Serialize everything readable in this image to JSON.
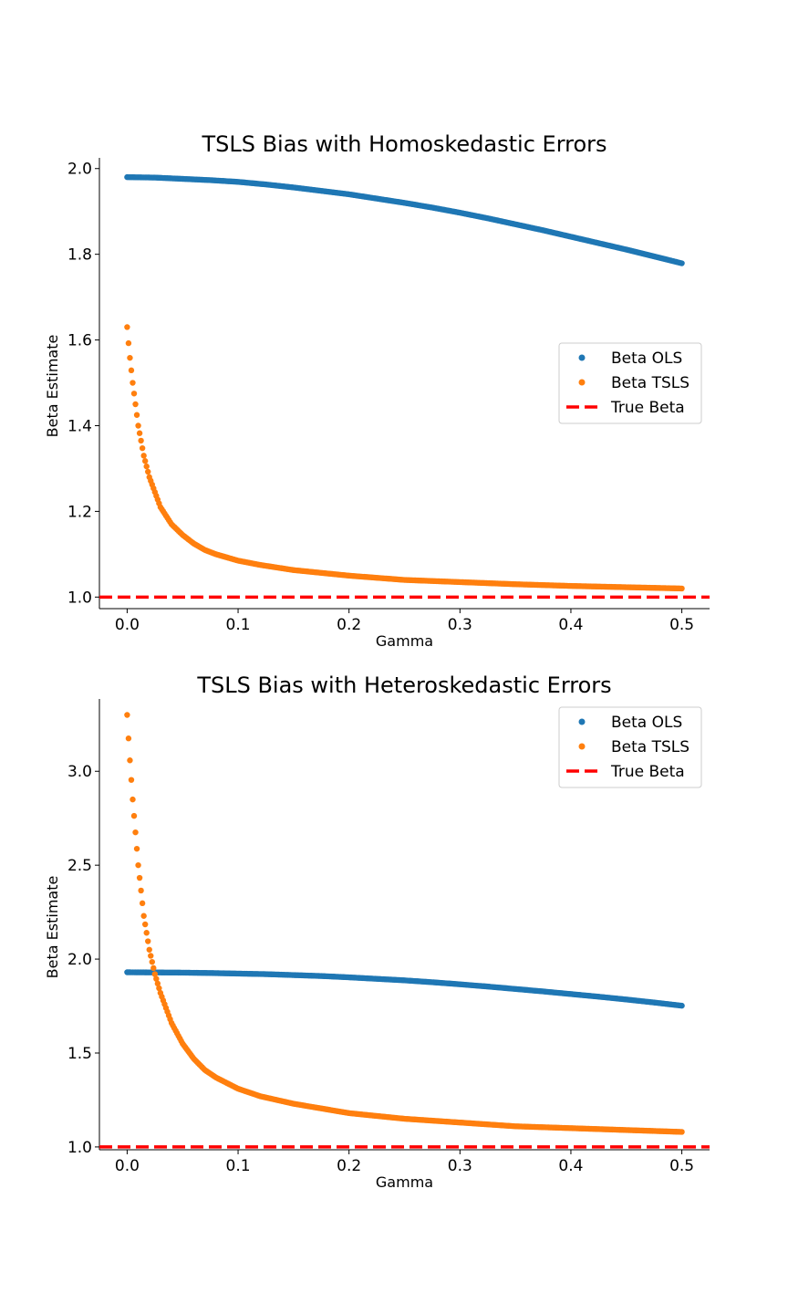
{
  "chart_data": [
    {
      "type": "scatter",
      "title": "TSLS Bias with Homoskedastic Errors",
      "xlabel": "Gamma",
      "ylabel": "Beta Estimate",
      "xlim": [
        -0.025,
        0.525
      ],
      "ylim": [
        0.973,
        2.025
      ],
      "xticks": [
        0.0,
        0.1,
        0.2,
        0.3,
        0.4,
        0.5
      ],
      "xtick_labels": [
        "0.0",
        "0.1",
        "0.2",
        "0.3",
        "0.4",
        "0.5"
      ],
      "yticks": [
        1.0,
        1.2,
        1.4,
        1.6,
        1.8,
        2.0
      ],
      "ytick_labels": [
        "1.0",
        "1.2",
        "1.4",
        "1.6",
        "1.8",
        "2.0"
      ],
      "legend_position": "center-right",
      "series": [
        {
          "name": "Beta OLS",
          "kind": "scatter",
          "color": "#1f77b4",
          "x": [
            0.0,
            0.025,
            0.05,
            0.075,
            0.1,
            0.125,
            0.15,
            0.175,
            0.2,
            0.225,
            0.25,
            0.275,
            0.3,
            0.325,
            0.35,
            0.375,
            0.4,
            0.425,
            0.45,
            0.475,
            0.5
          ],
          "y": [
            1.98,
            1.979,
            1.976,
            1.973,
            1.969,
            1.963,
            1.956,
            1.948,
            1.94,
            1.93,
            1.92,
            1.909,
            1.897,
            1.884,
            1.87,
            1.856,
            1.841,
            1.826,
            1.811,
            1.795,
            1.779
          ]
        },
        {
          "name": "Beta TSLS",
          "kind": "scatter",
          "color": "#ff7f0e",
          "x": [
            0.0,
            0.002,
            0.005,
            0.01,
            0.015,
            0.02,
            0.03,
            0.04,
            0.05,
            0.06,
            0.07,
            0.08,
            0.1,
            0.12,
            0.15,
            0.2,
            0.25,
            0.3,
            0.35,
            0.4,
            0.45,
            0.5
          ],
          "y": [
            1.63,
            1.57,
            1.5,
            1.4,
            1.33,
            1.28,
            1.21,
            1.17,
            1.145,
            1.125,
            1.11,
            1.1,
            1.085,
            1.075,
            1.063,
            1.05,
            1.04,
            1.035,
            1.03,
            1.026,
            1.023,
            1.02
          ]
        },
        {
          "name": "True Beta",
          "kind": "hline",
          "color": "#ff0000",
          "y": 1.0
        }
      ]
    },
    {
      "type": "scatter",
      "title": "TSLS Bias with Heteroskedastic Errors",
      "xlabel": "Gamma",
      "ylabel": "Beta Estimate",
      "xlim": [
        -0.025,
        0.525
      ],
      "ylim": [
        0.985,
        3.385
      ],
      "xticks": [
        0.0,
        0.1,
        0.2,
        0.3,
        0.4,
        0.5
      ],
      "xtick_labels": [
        "0.0",
        "0.1",
        "0.2",
        "0.3",
        "0.4",
        "0.5"
      ],
      "yticks": [
        1.0,
        1.5,
        2.0,
        2.5,
        3.0
      ],
      "ytick_labels": [
        "1.0",
        "1.5",
        "2.0",
        "2.5",
        "3.0"
      ],
      "legend_position": "top-right",
      "series": [
        {
          "name": "Beta OLS",
          "kind": "scatter",
          "color": "#1f77b4",
          "x": [
            0.0,
            0.025,
            0.05,
            0.075,
            0.1,
            0.125,
            0.15,
            0.175,
            0.2,
            0.225,
            0.25,
            0.275,
            0.3,
            0.325,
            0.35,
            0.375,
            0.4,
            0.425,
            0.45,
            0.475,
            0.5
          ],
          "y": [
            1.93,
            1.929,
            1.928,
            1.926,
            1.923,
            1.92,
            1.915,
            1.91,
            1.903,
            1.895,
            1.887,
            1.877,
            1.866,
            1.854,
            1.841,
            1.828,
            1.814,
            1.8,
            1.785,
            1.769,
            1.752
          ]
        },
        {
          "name": "Beta TSLS",
          "kind": "scatter",
          "color": "#ff7f0e",
          "x": [
            0.0,
            0.002,
            0.005,
            0.01,
            0.015,
            0.02,
            0.025,
            0.03,
            0.04,
            0.05,
            0.06,
            0.07,
            0.08,
            0.1,
            0.12,
            0.15,
            0.2,
            0.25,
            0.3,
            0.35,
            0.4,
            0.45,
            0.5
          ],
          "y": [
            3.3,
            3.1,
            2.85,
            2.5,
            2.23,
            2.05,
            1.92,
            1.82,
            1.66,
            1.55,
            1.47,
            1.41,
            1.37,
            1.31,
            1.27,
            1.23,
            1.18,
            1.15,
            1.13,
            1.11,
            1.1,
            1.09,
            1.08
          ]
        },
        {
          "name": "True Beta",
          "kind": "hline",
          "color": "#ff0000",
          "y": 1.0
        }
      ]
    }
  ]
}
